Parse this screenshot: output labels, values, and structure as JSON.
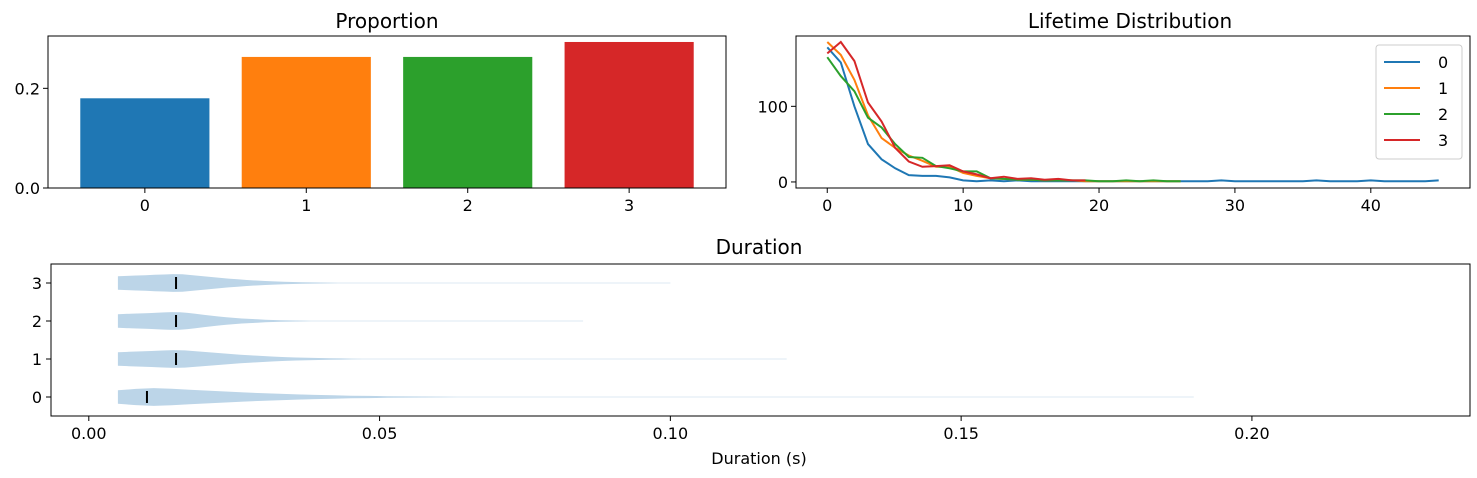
{
  "chart_data": [
    {
      "type": "bar",
      "title": "Proportion",
      "categories": [
        "0",
        "1",
        "2",
        "3"
      ],
      "values": [
        0.18,
        0.263,
        0.263,
        0.293
      ],
      "colors": [
        "#1f77b4",
        "#ff7f0e",
        "#2ca02c",
        "#d62728"
      ],
      "ylim": [
        0,
        0.305
      ],
      "yticks": [
        0.0,
        0.2
      ],
      "ytick_labels": [
        "0.0",
        "0.2"
      ],
      "grid": false
    },
    {
      "type": "line",
      "title": "Lifetime Distribution",
      "xlim": [
        -2.3,
        47.3
      ],
      "ylim": [
        -8,
        193
      ],
      "xticks": [
        0,
        10,
        20,
        30,
        40
      ],
      "xtick_labels": [
        "0",
        "10",
        "20",
        "30",
        "40"
      ],
      "yticks": [
        0,
        100
      ],
      "ytick_labels": [
        "0",
        "100"
      ],
      "legend_position": "top-right",
      "grid": false,
      "series": [
        {
          "name": "0",
          "color": "#1f77b4",
          "x": [
            0,
            1,
            2,
            3,
            4,
            5,
            6,
            7,
            8,
            9,
            10,
            11,
            12,
            13,
            14,
            15,
            16,
            17,
            18,
            19,
            20,
            21,
            22,
            23,
            24,
            25,
            26,
            27,
            28,
            29,
            30,
            31,
            32,
            33,
            34,
            35,
            36,
            37,
            38,
            39,
            40,
            41,
            42,
            43,
            44,
            45
          ],
          "y": [
            178,
            158,
            100,
            50,
            30,
            18,
            9,
            8,
            8,
            6,
            2,
            1,
            2,
            1,
            2,
            1,
            1,
            1,
            1,
            1,
            1,
            1,
            1,
            1,
            1,
            1,
            1,
            1,
            1,
            2,
            1,
            1,
            1,
            1,
            1,
            1,
            2,
            1,
            1,
            1,
            2,
            1,
            1,
            1,
            1,
            2
          ]
        },
        {
          "name": "1",
          "color": "#ff7f0e",
          "x": [
            0,
            1,
            2,
            3,
            4,
            5,
            6,
            7,
            8,
            9,
            10,
            11,
            12,
            13,
            14,
            15,
            16,
            17,
            18,
            19,
            20,
            21,
            22,
            23,
            24,
            25,
            26
          ],
          "y": [
            185,
            168,
            135,
            88,
            58,
            45,
            35,
            28,
            20,
            20,
            12,
            8,
            5,
            4,
            3,
            3,
            2,
            2,
            2,
            1,
            1,
            1,
            1,
            1,
            1,
            1,
            1
          ]
        },
        {
          "name": "2",
          "color": "#2ca02c",
          "x": [
            0,
            1,
            2,
            3,
            4,
            5,
            6,
            7,
            8,
            9,
            10,
            11,
            12,
            13,
            14,
            15,
            16,
            17,
            18,
            19,
            20,
            21,
            22,
            23,
            24,
            25,
            26
          ],
          "y": [
            165,
            140,
            120,
            85,
            72,
            50,
            33,
            32,
            21,
            18,
            14,
            14,
            5,
            4,
            3,
            3,
            2,
            2,
            2,
            2,
            1,
            1,
            2,
            1,
            2,
            1,
            1
          ]
        },
        {
          "name": "3",
          "color": "#d62728",
          "x": [
            0,
            1,
            2,
            3,
            4,
            5,
            6,
            7,
            8,
            9,
            10,
            11,
            12,
            13,
            14,
            15,
            16,
            17,
            18,
            19
          ],
          "y": [
            170,
            185,
            160,
            105,
            80,
            45,
            27,
            20,
            21,
            22,
            14,
            10,
            5,
            7,
            4,
            5,
            3,
            4,
            2,
            2
          ]
        }
      ]
    },
    {
      "type": "violin",
      "title": "Duration",
      "xlabel": "Duration (s)",
      "xlim": [
        -0.0065,
        0.2375
      ],
      "xticks": [
        0.0,
        0.05,
        0.1,
        0.15,
        0.2
      ],
      "xtick_labels": [
        "0.00",
        "0.05",
        "0.10",
        "0.15",
        "0.20"
      ],
      "categories": [
        "0",
        "1",
        "2",
        "3"
      ],
      "fill_color": "#bcd5e8",
      "median_color": "#000000",
      "grid": false,
      "groups": [
        {
          "name": "0",
          "min": 0.005,
          "max": 0.19,
          "median": 0.01
        },
        {
          "name": "1",
          "min": 0.005,
          "max": 0.12,
          "median": 0.015
        },
        {
          "name": "2",
          "min": 0.005,
          "max": 0.085,
          "median": 0.015
        },
        {
          "name": "3",
          "min": 0.005,
          "max": 0.1,
          "median": 0.015
        }
      ]
    }
  ]
}
